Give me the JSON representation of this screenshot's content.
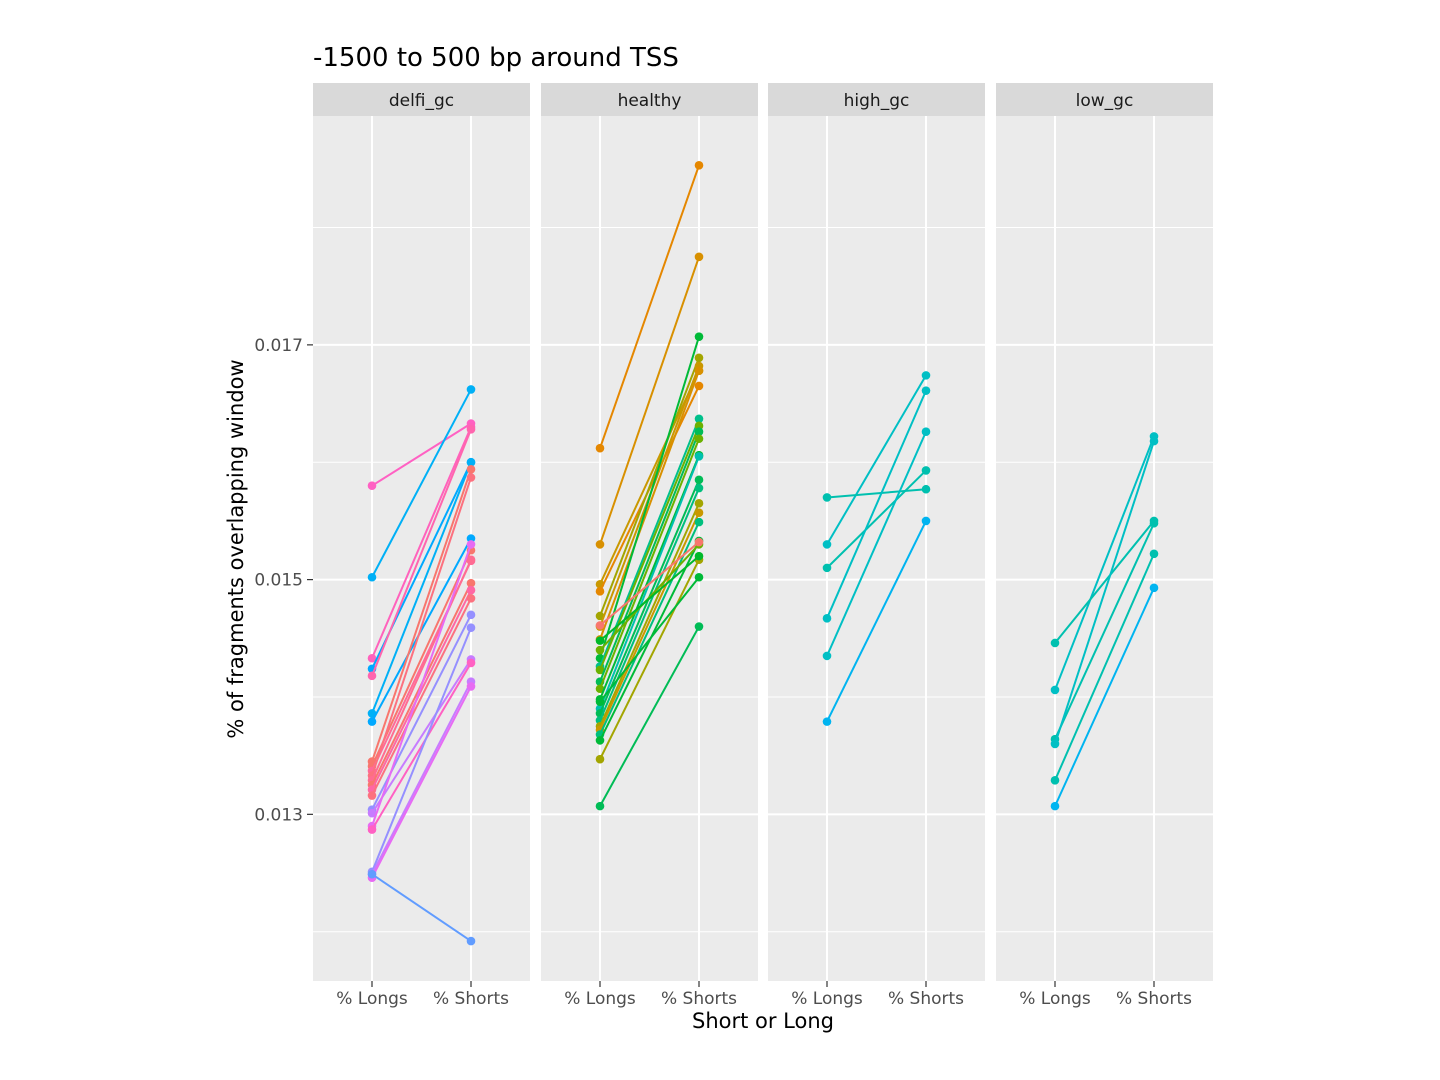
{
  "chart_data": {
    "type": "line",
    "title": "-1500 to 500 bp around TSS",
    "xlabel": "Short or Long",
    "ylabel": "% of fragments overlapping window",
    "categories": [
      "% Longs",
      "% Shorts"
    ],
    "ylim": [
      0.01158,
      0.01895
    ],
    "y_ticks": [
      0.013,
      0.015,
      0.017
    ],
    "y_tick_labels": [
      "0.013",
      "0.015",
      "0.017"
    ],
    "grid": true,
    "legend": "none",
    "facets": [
      {
        "label": "delfi_gc",
        "series": [
          {
            "color": "#FF61C3",
            "values": [
              0.0158,
              0.01633
            ]
          },
          {
            "color": "#00B0F6",
            "values": [
              0.01502,
              0.01662
            ]
          },
          {
            "color": "#FF62BC",
            "values": [
              0.01433,
              0.0163
            ]
          },
          {
            "color": "#00A9FF",
            "values": [
              0.01424,
              0.016
            ]
          },
          {
            "color": "#FF65AE",
            "values": [
              0.01418,
              0.01628
            ]
          },
          {
            "color": "#00B0F6",
            "values": [
              0.01386,
              0.016
            ]
          },
          {
            "color": "#00A9FF",
            "values": [
              0.01379,
              0.01535
            ]
          },
          {
            "color": "#F8766D",
            "values": [
              0.01345,
              0.01594
            ]
          },
          {
            "color": "#F8766D",
            "values": [
              0.01341,
              0.01525
            ]
          },
          {
            "color": "#FF6A98",
            "values": [
              0.01337,
              0.01516
            ]
          },
          {
            "color": "#FC717F",
            "values": [
              0.01333,
              0.01587
            ]
          },
          {
            "color": "#FF6C91",
            "values": [
              0.01329,
              0.01517
            ]
          },
          {
            "color": "#F8766D",
            "values": [
              0.01325,
              0.01497
            ]
          },
          {
            "color": "#FF67A4",
            "values": [
              0.01321,
              0.01491
            ]
          },
          {
            "color": "#FC717F",
            "values": [
              0.01316,
              0.01484
            ]
          },
          {
            "color": "#9590FF",
            "values": [
              0.01304,
              0.0147
            ]
          },
          {
            "color": "#C77CFF",
            "values": [
              0.01301,
              0.01432
            ]
          },
          {
            "color": "#E76BF3",
            "values": [
              0.0129,
              0.0153
            ]
          },
          {
            "color": "#FF61C3",
            "values": [
              0.01287,
              0.01429
            ]
          },
          {
            "color": "#9590FF",
            "values": [
              0.01251,
              0.01459
            ]
          },
          {
            "color": "#C77CFF",
            "values": [
              0.01249,
              0.01413
            ]
          },
          {
            "color": "#E76BF3",
            "values": [
              0.01246,
              0.01409
            ]
          },
          {
            "color": "#619CFF",
            "values": [
              0.01249,
              0.01192
            ]
          }
        ]
      },
      {
        "label": "healthy",
        "series": [
          {
            "color": "#E58700",
            "values": [
              0.01612,
              0.01853
            ]
          },
          {
            "color": "#D89000",
            "values": [
              0.0153,
              0.01775
            ]
          },
          {
            "color": "#C99800",
            "values": [
              0.01496,
              0.01678
            ]
          },
          {
            "color": "#E58700",
            "values": [
              0.0149,
              0.01665
            ]
          },
          {
            "color": "#A3A500",
            "values": [
              0.01469,
              0.01689
            ]
          },
          {
            "color": "#C99800",
            "values": [
              0.0146,
              0.01682
            ]
          },
          {
            "color": "#D89000",
            "values": [
              0.01449,
              0.01678
            ]
          },
          {
            "color": "#00BA38",
            "values": [
              0.01433,
              0.01707
            ]
          },
          {
            "color": "#00C08B",
            "values": [
              0.01426,
              0.01637
            ]
          },
          {
            "color": "#6BB100",
            "values": [
              0.01423,
              0.01631
            ]
          },
          {
            "color": "#00BC56",
            "values": [
              0.01413,
              0.01626
            ]
          },
          {
            "color": "#6BB100",
            "values": [
              0.01407,
              0.0162
            ]
          },
          {
            "color": "#00BA38",
            "values": [
              0.01398,
              0.01606
            ]
          },
          {
            "color": "#00C0AF",
            "values": [
              0.0139,
              0.01605
            ]
          },
          {
            "color": "#00BC56",
            "values": [
              0.01386,
              0.01585
            ]
          },
          {
            "color": "#00BF7D",
            "values": [
              0.0138,
              0.01578
            ]
          },
          {
            "color": "#A3A500",
            "values": [
              0.01375,
              0.01565
            ]
          },
          {
            "color": "#C99800",
            "values": [
              0.01372,
              0.01557
            ]
          },
          {
            "color": "#00BF7D",
            "values": [
              0.01368,
              0.01549
            ]
          },
          {
            "color": "#00BA38",
            "values": [
              0.01363,
              0.01533
            ]
          },
          {
            "color": "#A3A500",
            "values": [
              0.01347,
              0.01517
            ]
          },
          {
            "color": "#00BC56",
            "values": [
              0.01307,
              0.0146
            ]
          },
          {
            "color": "#00BA38",
            "values": [
              0.01396,
              0.01502
            ]
          },
          {
            "color": "#6BB100",
            "values": [
              0.0144,
              0.0153
            ]
          },
          {
            "color": "#F8766D",
            "values": [
              0.01461,
              0.01532
            ]
          },
          {
            "color": "#00B92A",
            "values": [
              0.01448,
              0.0152
            ]
          }
        ]
      },
      {
        "label": "high_gc",
        "series": [
          {
            "color": "#00BFC4",
            "values": [
              0.0153,
              0.01674
            ]
          },
          {
            "color": "#00C0AF",
            "values": [
              0.0157,
              0.01577
            ]
          },
          {
            "color": "#00C0AF",
            "values": [
              0.0151,
              0.01593
            ]
          },
          {
            "color": "#00BFC4",
            "values": [
              0.01467,
              0.01661
            ]
          },
          {
            "color": "#00BFC4",
            "values": [
              0.01435,
              0.01626
            ]
          },
          {
            "color": "#00B4F0",
            "values": [
              0.01379,
              0.0155
            ]
          }
        ]
      },
      {
        "label": "low_gc",
        "series": [
          {
            "color": "#00BFC4",
            "values": [
              0.01406,
              0.01622
            ]
          },
          {
            "color": "#00C0AF",
            "values": [
              0.01446,
              0.0155
            ]
          },
          {
            "color": "#00C0AF",
            "values": [
              0.01364,
              0.01548
            ]
          },
          {
            "color": "#00BFC4",
            "values": [
              0.0136,
              0.01618
            ]
          },
          {
            "color": "#00C0AF",
            "values": [
              0.01329,
              0.01522
            ]
          },
          {
            "color": "#00B4F0",
            "values": [
              0.01307,
              0.01493
            ]
          }
        ]
      }
    ]
  }
}
